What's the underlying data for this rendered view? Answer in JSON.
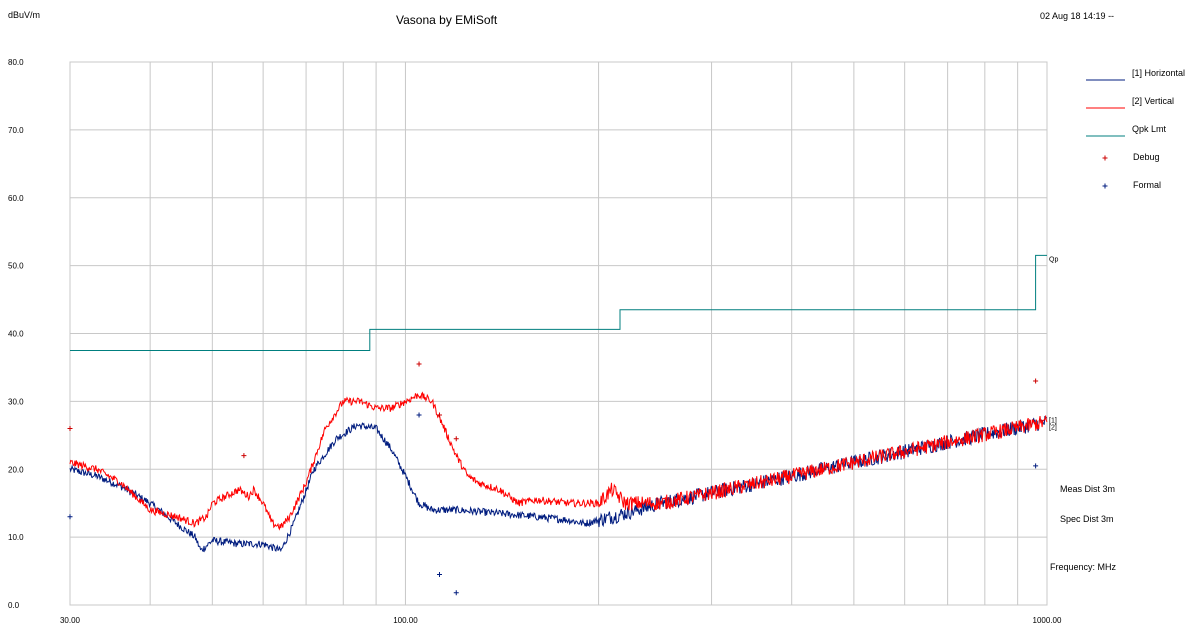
{
  "header": {
    "unit_label": "dBuV/m",
    "title": "Vasona by EMiSoft",
    "datetime": "02 Aug 18 14:19 --"
  },
  "notes": {
    "meas_dist": "Meas Dist 3m",
    "spec_dist": "Spec Dist 3m",
    "frequency": "Frequency: MHz"
  },
  "colors": {
    "horizontal": "#001c7f",
    "vertical": "#ff0000",
    "limit": "#007f7f",
    "debug": "#cc0000",
    "formal": "#001c7f",
    "grid": "#c8c8c8"
  },
  "chart_data": {
    "type": "line",
    "x_scale": "log",
    "xlim": [
      30,
      1000
    ],
    "ylim": [
      0,
      80
    ],
    "x_ticks": [
      {
        "value": 30,
        "label": "30.00"
      },
      {
        "value": 100,
        "label": "100.00"
      },
      {
        "value": 1000,
        "label": "1000.00"
      }
    ],
    "y_ticks": [
      {
        "value": 0,
        "label": "0.0"
      },
      {
        "value": 10,
        "label": "10.0"
      },
      {
        "value": 20,
        "label": "20.0"
      },
      {
        "value": 30,
        "label": "30.0"
      },
      {
        "value": 40,
        "label": "40.0"
      },
      {
        "value": 50,
        "label": "50.0"
      },
      {
        "value": 60,
        "label": "60.0"
      },
      {
        "value": 70,
        "label": "70.0"
      },
      {
        "value": 80,
        "label": "80.0"
      }
    ],
    "grid": true,
    "legend_position": "right",
    "legend": [
      "[1] Horizontal",
      "[2] Vertical",
      "Qpk Lmt",
      "Debug",
      "Formal"
    ],
    "series": [
      {
        "name": "[1] Horizontal",
        "end_label": "[1]",
        "points": [
          [
            30,
            20
          ],
          [
            33,
            19
          ],
          [
            36,
            17.5
          ],
          [
            40,
            15
          ],
          [
            44,
            12
          ],
          [
            47,
            10
          ],
          [
            48,
            8
          ],
          [
            50,
            9.5
          ],
          [
            55,
            9
          ],
          [
            60,
            9
          ],
          [
            64,
            8
          ],
          [
            67,
            12
          ],
          [
            72,
            20
          ],
          [
            78,
            24.5
          ],
          [
            84,
            26.5
          ],
          [
            90,
            26
          ],
          [
            95,
            23
          ],
          [
            100,
            19
          ],
          [
            105,
            15
          ],
          [
            110,
            14
          ],
          [
            120,
            14
          ],
          [
            140,
            13.5
          ],
          [
            160,
            13
          ],
          [
            180,
            12.5
          ],
          [
            190,
            12
          ],
          [
            200,
            12.5
          ],
          [
            220,
            13.5
          ],
          [
            250,
            15
          ],
          [
            300,
            16.5
          ],
          [
            400,
            19
          ],
          [
            500,
            21
          ],
          [
            700,
            24
          ],
          [
            1000,
            27
          ]
        ]
      },
      {
        "name": "[2] Vertical",
        "end_label": "[2]",
        "points": [
          [
            30,
            21
          ],
          [
            33,
            20
          ],
          [
            36,
            18
          ],
          [
            40,
            14
          ],
          [
            44,
            13
          ],
          [
            47,
            12
          ],
          [
            49,
            13
          ],
          [
            50,
            15
          ],
          [
            55,
            17
          ],
          [
            57,
            16
          ],
          [
            58,
            17
          ],
          [
            60,
            15
          ],
          [
            62,
            12
          ],
          [
            64,
            11.5
          ],
          [
            66,
            13
          ],
          [
            70,
            18
          ],
          [
            75,
            26
          ],
          [
            80,
            30
          ],
          [
            85,
            30
          ],
          [
            90,
            29
          ],
          [
            95,
            29
          ],
          [
            100,
            30
          ],
          [
            105,
            31
          ],
          [
            110,
            30
          ],
          [
            115,
            26
          ],
          [
            120,
            22
          ],
          [
            125,
            19
          ],
          [
            130,
            18
          ],
          [
            140,
            17
          ],
          [
            150,
            15
          ],
          [
            160,
            15.5
          ],
          [
            180,
            15
          ],
          [
            200,
            15
          ],
          [
            210,
            17
          ],
          [
            220,
            15
          ],
          [
            250,
            15
          ],
          [
            300,
            16.5
          ],
          [
            400,
            19
          ],
          [
            500,
            21
          ],
          [
            700,
            24
          ],
          [
            1000,
            27
          ]
        ]
      },
      {
        "name": "Qpk Lmt",
        "end_label": "Qp",
        "step": true,
        "points": [
          [
            30,
            37.5
          ],
          [
            88,
            37.5
          ],
          [
            88,
            40.6
          ],
          [
            216,
            40.6
          ],
          [
            216,
            43.5
          ],
          [
            960,
            43.5
          ],
          [
            960,
            51.5
          ],
          [
            1000,
            51.5
          ]
        ]
      }
    ],
    "markers": [
      {
        "name": "Debug",
        "points": [
          [
            30,
            26
          ],
          [
            56,
            22
          ],
          [
            105,
            35.5
          ],
          [
            113,
            28
          ],
          [
            120,
            24.5
          ],
          [
            960,
            33
          ]
        ]
      },
      {
        "name": "Formal",
        "points": [
          [
            30,
            13
          ],
          [
            105,
            28
          ],
          [
            113,
            4.5
          ],
          [
            120,
            1.8
          ],
          [
            960,
            20.5
          ]
        ]
      }
    ]
  }
}
